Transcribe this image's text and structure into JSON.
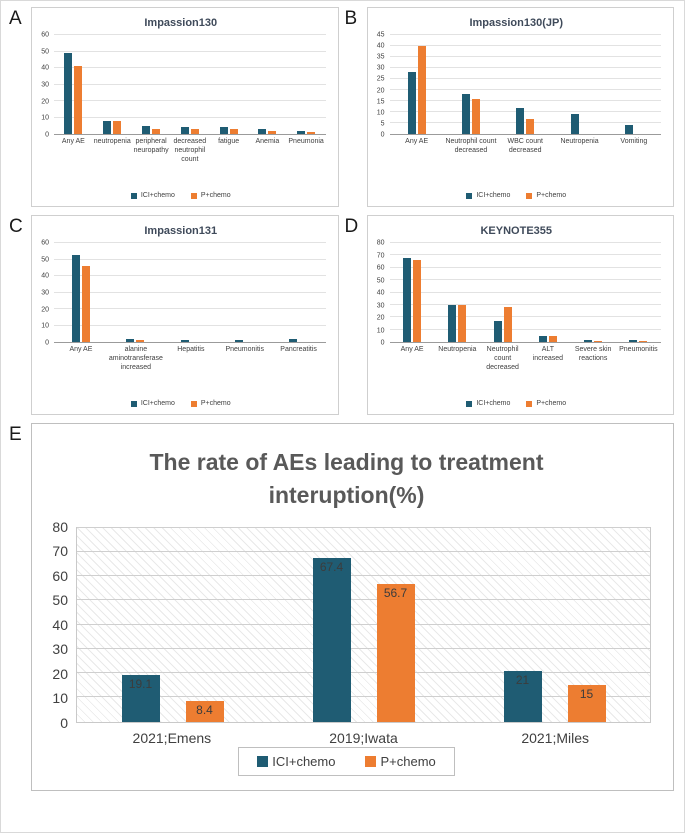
{
  "panels": [
    {
      "letter": "A"
    },
    {
      "letter": "B"
    },
    {
      "letter": "C"
    },
    {
      "letter": "D"
    },
    {
      "letter": "E"
    }
  ],
  "colors": {
    "ici": "#1F5C73",
    "p": "#ED7D31"
  },
  "chart_data": [
    {
      "type": "bar",
      "title": "Impassion130",
      "categories": [
        "Any AE",
        "neutropenia",
        "peripheral neuropathy",
        "decreased neutrophil count",
        "fatigue",
        "Anemia",
        "Pneumonia"
      ],
      "series": [
        {
          "name": "ICI+chemo",
          "values": [
            49,
            8,
            5,
            4,
            4,
            3,
            2
          ]
        },
        {
          "name": "P+chemo",
          "values": [
            41,
            8,
            3,
            3,
            3,
            2,
            1
          ]
        }
      ],
      "ylim": [
        0,
        60
      ],
      "ystep": 10,
      "grid": true,
      "legend_position": "bottom",
      "data_labels": false
    },
    {
      "type": "bar",
      "title": "Impassion130(JP)",
      "categories": [
        "Any AE",
        "Neutrophil count decreased",
        "WBC count decreased",
        "Neutropenia",
        "Vomiting"
      ],
      "series": [
        {
          "name": "ICI+chemo",
          "values": [
            28,
            18,
            12,
            9,
            4
          ]
        },
        {
          "name": "P+chemo",
          "values": [
            40,
            16,
            7,
            0,
            0
          ]
        }
      ],
      "ylim": [
        0,
        45
      ],
      "ystep": 5,
      "grid": true,
      "legend_position": "bottom",
      "data_labels": false
    },
    {
      "type": "bar",
      "title": "Impassion131",
      "categories": [
        "Any AE",
        "alanine aminotransferase increased",
        "Hepatitis",
        "Pneumonitis",
        "Pancreatitis"
      ],
      "series": [
        {
          "name": "ICI+chemo",
          "values": [
            53,
            2,
            1,
            1,
            2
          ]
        },
        {
          "name": "P+chemo",
          "values": [
            46,
            1,
            0,
            0,
            0
          ]
        }
      ],
      "ylim": [
        0,
        60
      ],
      "ystep": 10,
      "grid": true,
      "legend_position": "bottom",
      "data_labels": false
    },
    {
      "type": "bar",
      "title": "KEYNOTE355",
      "categories": [
        "Any AE",
        "Neutropenia",
        "Neutrophil count decreased",
        "ALT increased",
        "Severe skin reactions",
        "Pneumonitis"
      ],
      "series": [
        {
          "name": "ICI+chemo",
          "values": [
            68,
            30,
            17,
            5,
            2,
            2
          ]
        },
        {
          "name": "P+chemo",
          "values": [
            66,
            30,
            28,
            5,
            1,
            1
          ]
        }
      ],
      "ylim": [
        0,
        80
      ],
      "ystep": 10,
      "grid": true,
      "legend_position": "bottom",
      "data_labels": false
    },
    {
      "type": "bar",
      "title": "The rate of AEs leading to treatment interuption(%)",
      "categories": [
        "2021;Emens",
        "2019;Iwata",
        "2021;Miles"
      ],
      "series": [
        {
          "name": "ICI+chemo",
          "values": [
            19.1,
            67.4,
            21
          ]
        },
        {
          "name": "P+chemo",
          "values": [
            8.4,
            56.7,
            15
          ]
        }
      ],
      "ylim": [
        0,
        80
      ],
      "ystep": 10,
      "grid": true,
      "legend_position": "bottom",
      "data_labels": true
    }
  ]
}
